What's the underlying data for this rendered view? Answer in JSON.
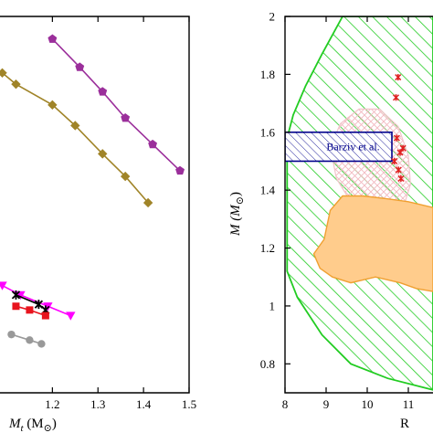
{
  "chart_data": [
    {
      "type": "line",
      "xlabel": "M_t (M_⊙)",
      "xlabel_parts": {
        "prefix": "M",
        "sub": "t",
        "units": " (M",
        "sun": "⊙",
        "close": ")"
      },
      "xlim": [
        1.085,
        1.5
      ],
      "ylim": [
        0.0,
        2.0
      ],
      "xticks": [
        1.2,
        1.3,
        1.4,
        1.5
      ],
      "xtick_labels": [
        "1.2",
        "1.3",
        "1.4",
        "1.5"
      ],
      "grid": false,
      "series": [
        {
          "marker": "pentagon",
          "color": "#9b2f9b",
          "points": [
            [
              1.2,
              1.88
            ],
            [
              1.26,
              1.73
            ],
            [
              1.31,
              1.6
            ],
            [
              1.36,
              1.46
            ],
            [
              1.42,
              1.32
            ],
            [
              1.48,
              1.18
            ]
          ]
        },
        {
          "marker": "diamond",
          "color": "#a08428",
          "points": [
            [
              1.09,
              1.7
            ],
            [
              1.12,
              1.64
            ],
            [
              1.2,
              1.53
            ],
            [
              1.25,
              1.42
            ],
            [
              1.31,
              1.27
            ],
            [
              1.36,
              1.15
            ],
            [
              1.41,
              1.01
            ]
          ]
        },
        {
          "marker": "triangle-down",
          "color": "#ff00ff",
          "points": [
            [
              1.09,
              0.57
            ],
            [
              1.13,
              0.52
            ],
            [
              1.19,
              0.46
            ],
            [
              1.24,
              0.41
            ]
          ]
        },
        {
          "marker": "x",
          "color": "#000000",
          "points": [
            [
              1.12,
              0.52
            ],
            [
              1.17,
              0.47
            ],
            [
              1.185,
              0.44
            ]
          ]
        },
        {
          "marker": "square",
          "color": "#e8141e",
          "points": [
            [
              1.12,
              0.46
            ],
            [
              1.15,
              0.44
            ],
            [
              1.185,
              0.41
            ]
          ]
        },
        {
          "marker": "circle",
          "color": "#999999",
          "points": [
            [
              1.11,
              0.31
            ],
            [
              1.15,
              0.28
            ],
            [
              1.176,
              0.26
            ]
          ]
        }
      ]
    },
    {
      "type": "area",
      "xlabel": "R",
      "ylabel": "M (M_⊙)",
      "ylabel_parts": {
        "prefix": "M (M",
        "sun": "⊙",
        "close": ")"
      },
      "xlim": [
        8,
        11.6
      ],
      "ylim": [
        0.7,
        2.0
      ],
      "xticks": [
        8,
        9,
        10,
        11
      ],
      "xtick_labels": [
        "8",
        "9",
        "10",
        "11"
      ],
      "yticks": [
        0.8,
        1.0,
        1.2,
        1.4,
        1.6,
        1.8,
        2.0
      ],
      "ytick_labels": [
        "0.8",
        "1",
        "1.2",
        "1.4",
        "1.6",
        "1.8",
        "2"
      ],
      "grid": false,
      "regions": [
        {
          "style": "green-hatched",
          "color": "#22cc22",
          "polygon": [
            [
              8.05,
              1.58
            ],
            [
              8.2,
              1.66
            ],
            [
              8.5,
              1.76
            ],
            [
              8.9,
              1.87
            ],
            [
              9.4,
              2.0
            ],
            [
              11.6,
              2.0
            ],
            [
              11.6,
              0.71
            ],
            [
              10.5,
              0.75
            ],
            [
              9.6,
              0.8
            ],
            [
              8.9,
              0.9
            ],
            [
              8.3,
              1.03
            ],
            [
              8.05,
              1.12
            ]
          ]
        },
        {
          "style": "pink-hatched",
          "color": "#f0b0b8",
          "polygon": [
            [
              9.1,
              1.55
            ],
            [
              9.35,
              1.63
            ],
            [
              9.8,
              1.68
            ],
            [
              10.3,
              1.68
            ],
            [
              10.75,
              1.62
            ],
            [
              11.0,
              1.52
            ],
            [
              11.05,
              1.42
            ],
            [
              10.9,
              1.35
            ],
            [
              10.2,
              1.33
            ],
            [
              9.6,
              1.36
            ],
            [
              9.25,
              1.44
            ]
          ]
        },
        {
          "style": "orange-filled",
          "color": "#ffcc8c",
          "polygon": [
            [
              8.7,
              1.18
            ],
            [
              8.95,
              1.23
            ],
            [
              9.1,
              1.33
            ],
            [
              9.4,
              1.38
            ],
            [
              9.9,
              1.38
            ],
            [
              10.5,
              1.37
            ],
            [
              11.0,
              1.36
            ],
            [
              11.6,
              1.34
            ],
            [
              11.6,
              1.05
            ],
            [
              11.2,
              1.06
            ],
            [
              10.8,
              1.08
            ],
            [
              10.2,
              1.1
            ],
            [
              9.6,
              1.08
            ],
            [
              9.15,
              1.1
            ],
            [
              8.85,
              1.13
            ]
          ]
        }
      ],
      "annotation_box": {
        "label": "Barziv et al.",
        "x": [
          8,
          10.6
        ],
        "y": [
          1.5,
          1.6
        ],
        "color": "#00008b"
      },
      "markers": {
        "marker": "star",
        "color": "#e02020",
        "points": [
          [
            10.75,
            1.79
          ],
          [
            10.7,
            1.72
          ],
          [
            10.72,
            1.58
          ],
          [
            10.8,
            1.53
          ],
          [
            10.87,
            1.545
          ],
          [
            10.76,
            1.47
          ],
          [
            10.82,
            1.44
          ],
          [
            10.66,
            1.5
          ]
        ]
      }
    }
  ]
}
